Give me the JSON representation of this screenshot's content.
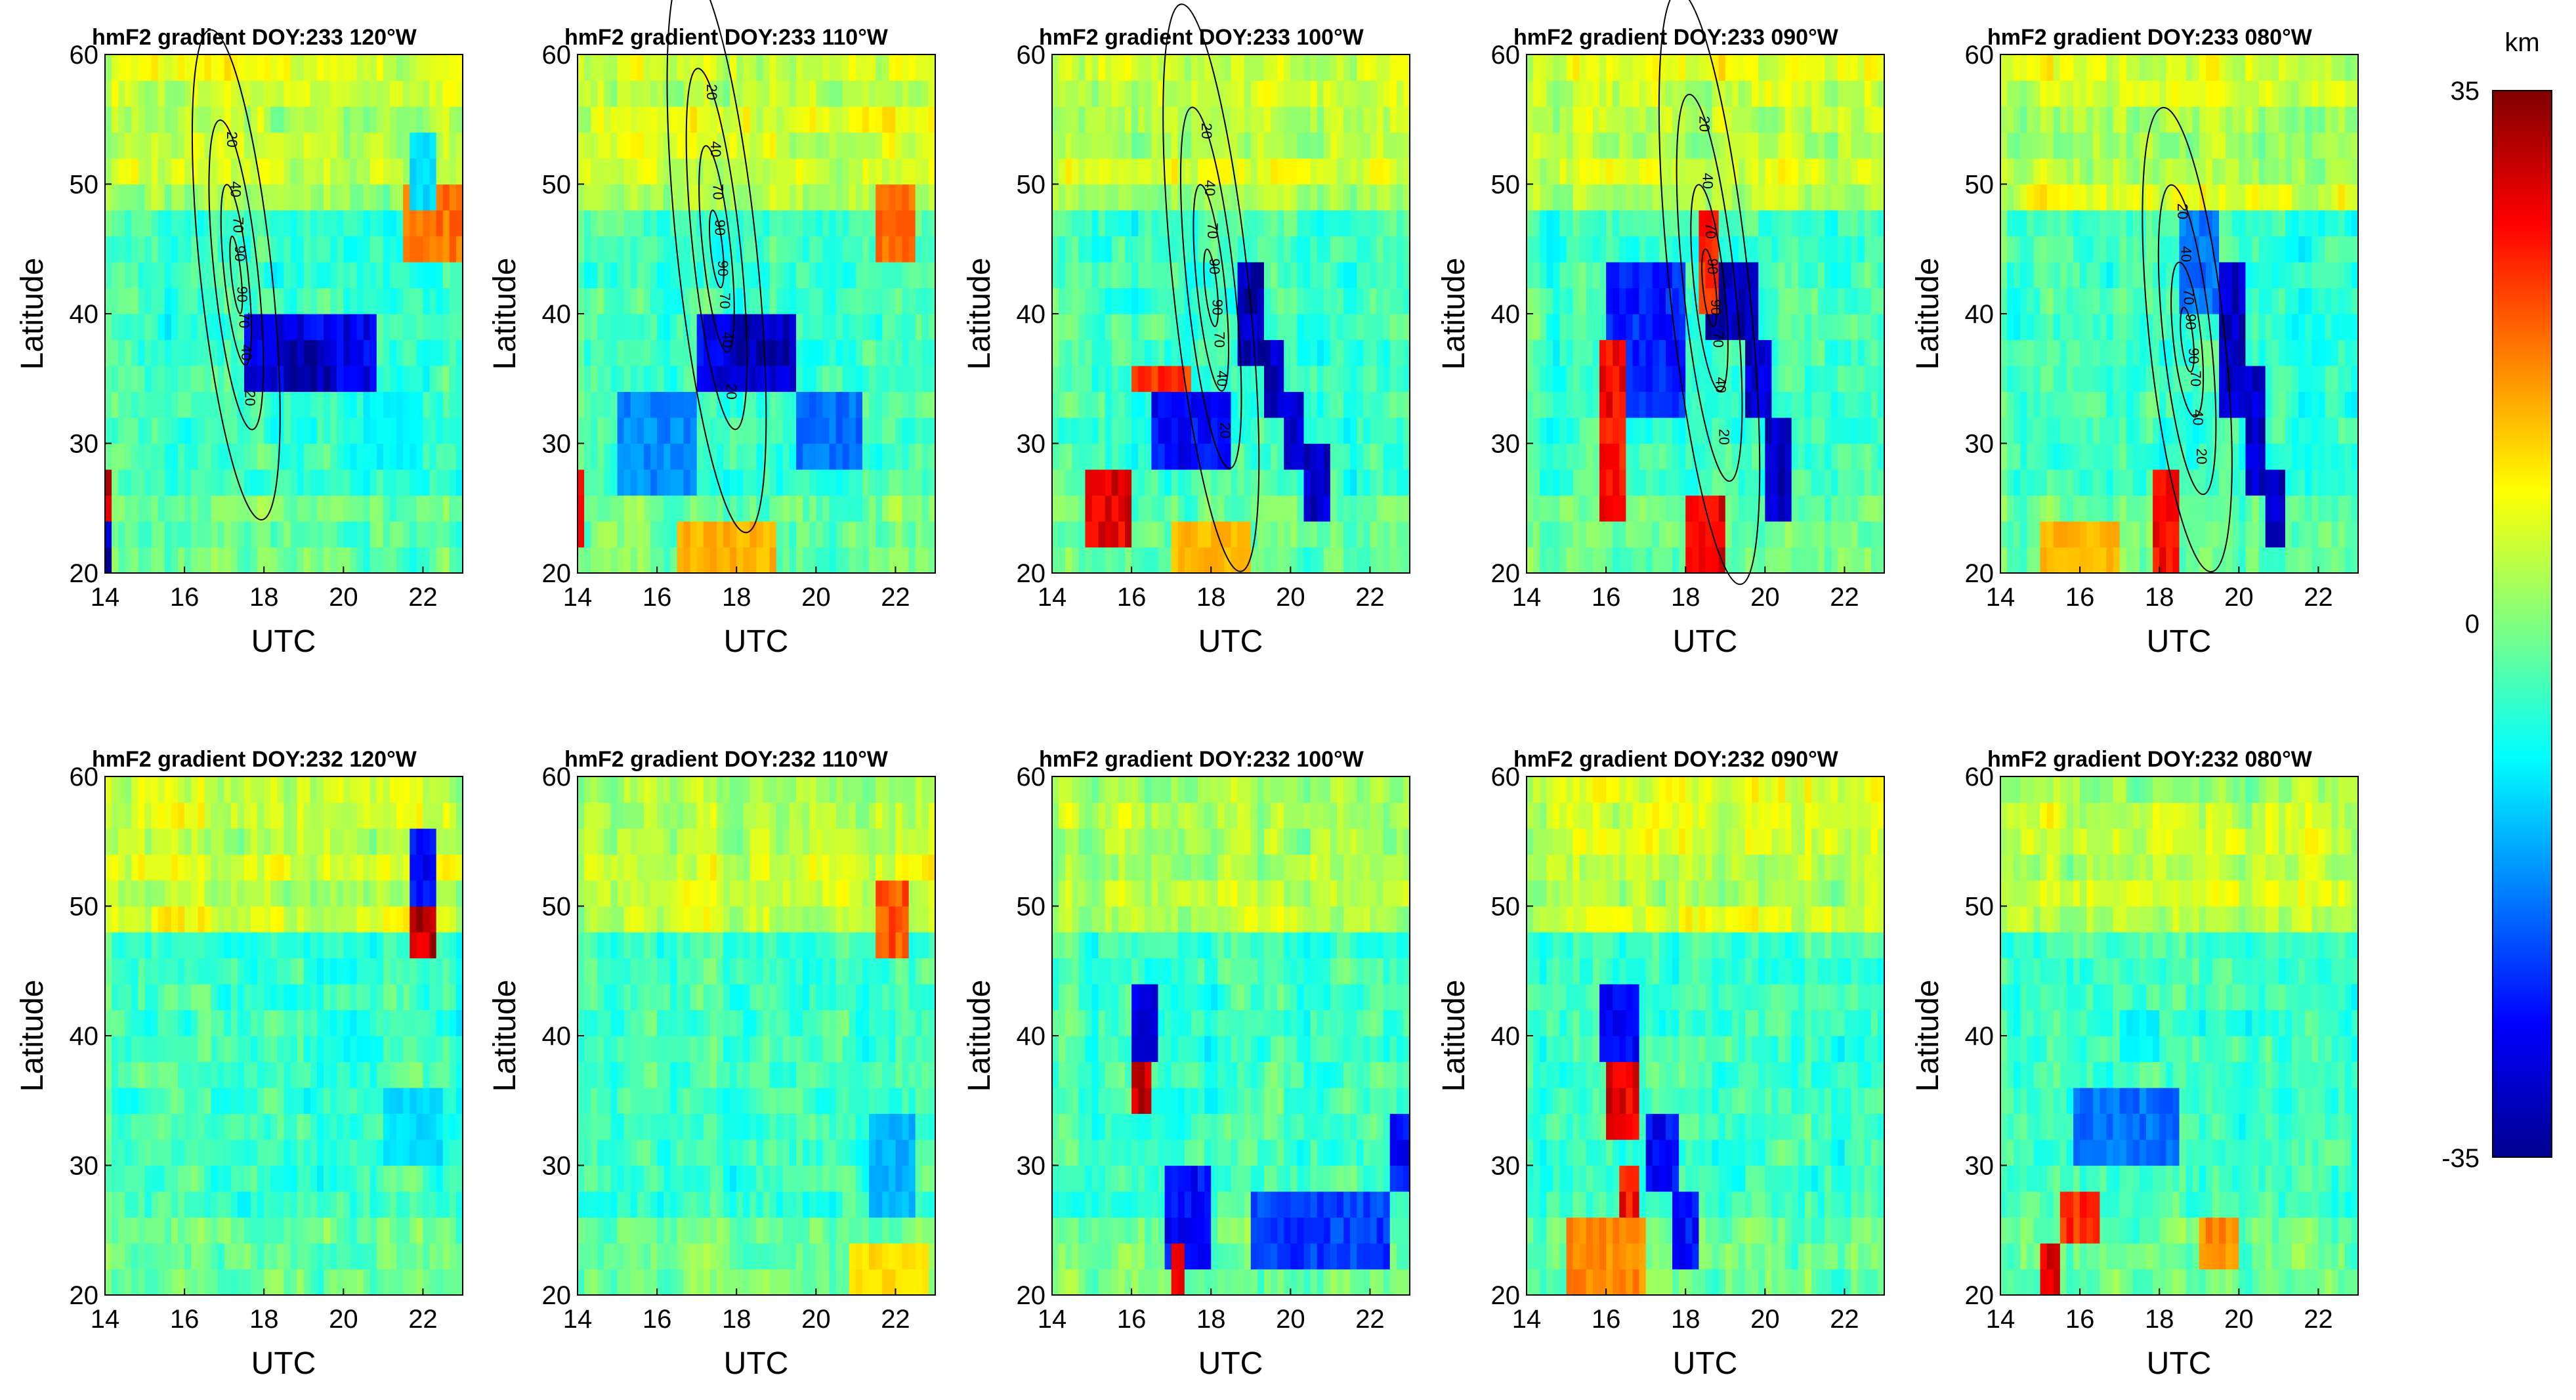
{
  "figure": {
    "colorbar": {
      "unit_label": "km",
      "max_label": "35",
      "mid_label": "0",
      "min_label": "-35",
      "range": [
        -35,
        35
      ],
      "colormap": "jet",
      "colormap_stops": [
        "#00008f",
        "#0000ff",
        "#0080ff",
        "#00ffff",
        "#80ff80",
        "#ffff00",
        "#ff8000",
        "#ff0000",
        "#800000"
      ]
    }
  },
  "chart_data": [
    {
      "id": "p233_120",
      "type": "heatmap",
      "title": "hmF2 gradient DOY:233 120°W",
      "xlabel": "UTC",
      "ylabel": "Latitude",
      "xlim": [
        14,
        23
      ],
      "ylim": [
        20,
        60
      ],
      "xticks": [
        "14",
        "16",
        "18",
        "20",
        "22"
      ],
      "yticks": [
        "20",
        "30",
        "40",
        "50",
        "60"
      ],
      "contours": {
        "center": [
          17.3,
          43
        ],
        "levels": [
          "20",
          "40",
          "70",
          "90"
        ],
        "axes_hours": [
          0.9,
          0.55,
          0.3,
          0.12
        ],
        "axes_lat": [
          19,
          12,
          7,
          3
        ]
      },
      "features": [
        {
          "x": [
            17.5,
            20.8
          ],
          "y": [
            35,
            40
          ],
          "value": -30
        },
        {
          "x": [
            18.5,
            19.8
          ],
          "y": [
            35,
            38
          ],
          "value": -35
        },
        {
          "x": [
            21.5,
            23.0
          ],
          "y": [
            45,
            50
          ],
          "value": 20
        },
        {
          "x": [
            21.7,
            22.3
          ],
          "y": [
            48,
            53
          ],
          "value": -12
        },
        {
          "x": [
            20.5,
            22.0
          ],
          "y": [
            28,
            33
          ],
          "value": -10
        },
        {
          "x": [
            14.0,
            14.1
          ],
          "y": [
            25,
            28
          ],
          "value": 32
        },
        {
          "x": [
            14.0,
            14.1
          ],
          "y": [
            20,
            23
          ],
          "value": -35
        }
      ]
    },
    {
      "id": "p233_110",
      "type": "heatmap",
      "title": "hmF2 gradient DOY:233 110°W",
      "xlabel": "UTC",
      "ylabel": "Latitude",
      "xlim": [
        14,
        23
      ],
      "ylim": [
        20,
        60
      ],
      "xticks": [
        "14",
        "16",
        "18",
        "20",
        "22"
      ],
      "yticks": [
        "20",
        "30",
        "40",
        "50",
        "60"
      ],
      "contours": {
        "center": [
          17.5,
          45
        ],
        "levels": [
          "20",
          "40",
          "70",
          "90"
        ],
        "axes_hours": [
          1.0,
          0.6,
          0.35,
          0.15
        ],
        "axes_lat": [
          22,
          14,
          8,
          3
        ]
      },
      "features": [
        {
          "x": [
            17.0,
            19.5
          ],
          "y": [
            35,
            40
          ],
          "value": -30
        },
        {
          "x": [
            18.0,
            19.5
          ],
          "y": [
            37,
            40
          ],
          "value": -35
        },
        {
          "x": [
            15.0,
            17.0
          ],
          "y": [
            27,
            33
          ],
          "value": -18
        },
        {
          "x": [
            19.5,
            21.2
          ],
          "y": [
            28,
            33
          ],
          "value": -20
        },
        {
          "x": [
            21.5,
            22.5
          ],
          "y": [
            45,
            50
          ],
          "value": 20
        },
        {
          "x": [
            14.0,
            14.2
          ],
          "y": [
            22,
            28
          ],
          "value": 26
        },
        {
          "x": [
            16.5,
            19.0
          ],
          "y": [
            20,
            23
          ],
          "value": 15
        }
      ]
    },
    {
      "id": "p233_100",
      "type": "heatmap",
      "title": "hmF2 gradient DOY:233 100°W",
      "xlabel": "UTC",
      "ylabel": "Latitude",
      "xlim": [
        14,
        23
      ],
      "ylim": [
        20,
        60
      ],
      "xticks": [
        "14",
        "16",
        "18",
        "20",
        "22"
      ],
      "yticks": [
        "20",
        "30",
        "40",
        "50",
        "60"
      ],
      "contours": {
        "center": [
          18.0,
          42
        ],
        "levels": [
          "20",
          "40",
          "70",
          "90"
        ],
        "axes_hours": [
          0.95,
          0.6,
          0.35,
          0.15
        ],
        "axes_lat": [
          22,
          14,
          8,
          3
        ]
      },
      "features": [
        {
          "x": [
            18.6,
            19.4
          ],
          "y": [
            37,
            43
          ],
          "value": -35
        },
        {
          "x": [
            19.3,
            19.9
          ],
          "y": [
            33,
            38
          ],
          "value": -33
        },
        {
          "x": [
            19.8,
            20.4
          ],
          "y": [
            29,
            34
          ],
          "value": -33
        },
        {
          "x": [
            20.3,
            21.0
          ],
          "y": [
            25,
            30
          ],
          "value": -33
        },
        {
          "x": [
            16.5,
            18.5
          ],
          "y": [
            28,
            33
          ],
          "value": -28
        },
        {
          "x": [
            14.8,
            16.0
          ],
          "y": [
            22,
            28
          ],
          "value": 30
        },
        {
          "x": [
            17.0,
            19.0
          ],
          "y": [
            20,
            23
          ],
          "value": 15
        },
        {
          "x": [
            16.0,
            17.5
          ],
          "y": [
            34,
            36
          ],
          "value": 25
        }
      ]
    },
    {
      "id": "p233_090",
      "type": "heatmap",
      "title": "hmF2 gradient DOY:233 090°W",
      "xlabel": "UTC",
      "ylabel": "Latitude",
      "xlim": [
        14,
        23
      ],
      "ylim": [
        20,
        60
      ],
      "xticks": [
        "14",
        "16",
        "18",
        "20",
        "22"
      ],
      "yticks": [
        "20",
        "30",
        "40",
        "50",
        "60"
      ],
      "contours": {
        "center": [
          18.6,
          42
        ],
        "levels": [
          "20",
          "40",
          "70",
          "90"
        ],
        "axes_hours": [
          1.0,
          0.65,
          0.38,
          0.16
        ],
        "axes_lat": [
          23,
          15,
          8,
          3
        ]
      },
      "features": [
        {
          "x": [
            18.5,
            19.8
          ],
          "y": [
            38,
            43
          ],
          "value": -35
        },
        {
          "x": [
            19.5,
            20.2
          ],
          "y": [
            32,
            38
          ],
          "value": -33
        },
        {
          "x": [
            20.0,
            20.6
          ],
          "y": [
            25,
            32
          ],
          "value": -33
        },
        {
          "x": [
            16.0,
            18.0
          ],
          "y": [
            33,
            43
          ],
          "value": -26
        },
        {
          "x": [
            15.8,
            16.5
          ],
          "y": [
            25,
            38
          ],
          "value": 28
        },
        {
          "x": [
            18.0,
            19.0
          ],
          "y": [
            20,
            26
          ],
          "value": 30
        },
        {
          "x": [
            18.3,
            18.8
          ],
          "y": [
            40,
            48
          ],
          "value": 26
        }
      ]
    },
    {
      "id": "p233_080",
      "type": "heatmap",
      "title": "hmF2 gradient DOY:233 080°W",
      "xlabel": "UTC",
      "ylabel": "Latitude",
      "xlim": [
        14,
        23
      ],
      "ylim": [
        20,
        60
      ],
      "xticks": [
        "14",
        "16",
        "18",
        "20",
        "22"
      ],
      "yticks": [
        "20",
        "30",
        "40",
        "50",
        "60"
      ],
      "contours": {
        "center": [
          18.7,
          38
        ],
        "levels": [
          "20",
          "40",
          "70",
          "90"
        ],
        "axes_hours": [
          0.95,
          0.6,
          0.35,
          0.15
        ],
        "axes_lat": [
          18,
          12,
          6,
          2.5
        ]
      },
      "features": [
        {
          "x": [
            19.5,
            20.2
          ],
          "y": [
            33,
            43
          ],
          "value": -33
        },
        {
          "x": [
            20.1,
            20.7
          ],
          "y": [
            27,
            35
          ],
          "value": -33
        },
        {
          "x": [
            20.6,
            21.1
          ],
          "y": [
            22,
            28
          ],
          "value": -33
        },
        {
          "x": [
            18.5,
            19.5
          ],
          "y": [
            40,
            48
          ],
          "value": -20
        },
        {
          "x": [
            17.8,
            18.5
          ],
          "y": [
            20,
            28
          ],
          "value": 28
        },
        {
          "x": [
            15.0,
            17.0
          ],
          "y": [
            20,
            23
          ],
          "value": 15
        }
      ]
    },
    {
      "id": "p232_120",
      "type": "heatmap",
      "title": "hmF2 gradient DOY:232 120°W",
      "xlabel": "UTC",
      "ylabel": "Latitude",
      "xlim": [
        14,
        23
      ],
      "ylim": [
        20,
        60
      ],
      "xticks": [
        "14",
        "16",
        "18",
        "20",
        "22"
      ],
      "yticks": [
        "20",
        "30",
        "40",
        "50",
        "60"
      ],
      "features": [
        {
          "x": [
            21.6,
            22.4
          ],
          "y": [
            46,
            51
          ],
          "value": 33
        },
        {
          "x": [
            21.6,
            22.4
          ],
          "y": [
            51,
            55
          ],
          "value": -28
        },
        {
          "x": [
            21.0,
            22.5
          ],
          "y": [
            30,
            35
          ],
          "value": -12
        }
      ]
    },
    {
      "id": "p232_110",
      "type": "heatmap",
      "title": "hmF2 gradient DOY:232 110°W",
      "xlabel": "UTC",
      "ylabel": "Latitude",
      "xlim": [
        14,
        23
      ],
      "ylim": [
        20,
        60
      ],
      "xticks": [
        "14",
        "16",
        "18",
        "20",
        "22"
      ],
      "yticks": [
        "20",
        "30",
        "40",
        "50",
        "60"
      ],
      "features": [
        {
          "x": [
            21.5,
            22.3
          ],
          "y": [
            47,
            51
          ],
          "value": 22
        },
        {
          "x": [
            21.3,
            22.5
          ],
          "y": [
            27,
            33
          ],
          "value": -15
        },
        {
          "x": [
            20.8,
            22.8
          ],
          "y": [
            20,
            24
          ],
          "value": 12
        }
      ]
    },
    {
      "id": "p232_100",
      "type": "heatmap",
      "title": "hmF2 gradient DOY:232 100°W",
      "xlabel": "UTC",
      "ylabel": "Latitude",
      "xlim": [
        14,
        23
      ],
      "ylim": [
        20,
        60
      ],
      "xticks": [
        "14",
        "16",
        "18",
        "20",
        "22"
      ],
      "yticks": [
        "20",
        "30",
        "40",
        "50",
        "60"
      ],
      "features": [
        {
          "x": [
            16.0,
            16.5
          ],
          "y": [
            34,
            39
          ],
          "value": 32
        },
        {
          "x": [
            16.0,
            16.6
          ],
          "y": [
            39,
            43
          ],
          "value": -30
        },
        {
          "x": [
            16.8,
            18.0
          ],
          "y": [
            22,
            30
          ],
          "value": -28
        },
        {
          "x": [
            19.0,
            22.5
          ],
          "y": [
            22,
            28
          ],
          "value": -24
        },
        {
          "x": [
            17.0,
            17.4
          ],
          "y": [
            20,
            23
          ],
          "value": 28
        },
        {
          "x": [
            22.5,
            23.0
          ],
          "y": [
            28,
            33
          ],
          "value": -28
        }
      ]
    },
    {
      "id": "p232_090",
      "type": "heatmap",
      "title": "hmF2 gradient DOY:232 090°W",
      "xlabel": "UTC",
      "ylabel": "Latitude",
      "xlim": [
        14,
        23
      ],
      "ylim": [
        20,
        60
      ],
      "xticks": [
        "14",
        "16",
        "18",
        "20",
        "22"
      ],
      "yticks": [
        "20",
        "30",
        "40",
        "50",
        "60"
      ],
      "features": [
        {
          "x": [
            15.8,
            16.8
          ],
          "y": [
            38,
            43
          ],
          "value": -28
        },
        {
          "x": [
            16.0,
            16.8
          ],
          "y": [
            33,
            38
          ],
          "value": 30
        },
        {
          "x": [
            17.0,
            17.8
          ],
          "y": [
            28,
            33
          ],
          "value": -28
        },
        {
          "x": [
            17.6,
            18.4
          ],
          "y": [
            22,
            28
          ],
          "value": -28
        },
        {
          "x": [
            16.3,
            16.8
          ],
          "y": [
            25,
            29
          ],
          "value": 28
        },
        {
          "x": [
            15.0,
            17.0
          ],
          "y": [
            20,
            25
          ],
          "value": 18
        }
      ]
    },
    {
      "id": "p232_080",
      "type": "heatmap",
      "title": "hmF2 gradient DOY:232 080°W",
      "xlabel": "UTC",
      "ylabel": "Latitude",
      "xlim": [
        14,
        23
      ],
      "ylim": [
        20,
        60
      ],
      "xticks": [
        "14",
        "16",
        "18",
        "20",
        "22"
      ],
      "yticks": [
        "20",
        "30",
        "40",
        "50",
        "60"
      ],
      "features": [
        {
          "x": [
            15.0,
            15.5
          ],
          "y": [
            20,
            23
          ],
          "value": 32
        },
        {
          "x": [
            15.5,
            16.5
          ],
          "y": [
            25,
            28
          ],
          "value": 25
        },
        {
          "x": [
            15.8,
            18.5
          ],
          "y": [
            31,
            35
          ],
          "value": -20
        },
        {
          "x": [
            19.0,
            20.0
          ],
          "y": [
            22,
            25
          ],
          "value": 18
        },
        {
          "x": [
            17.0,
            18.0
          ],
          "y": [
            38,
            41
          ],
          "value": -10
        }
      ]
    }
  ]
}
